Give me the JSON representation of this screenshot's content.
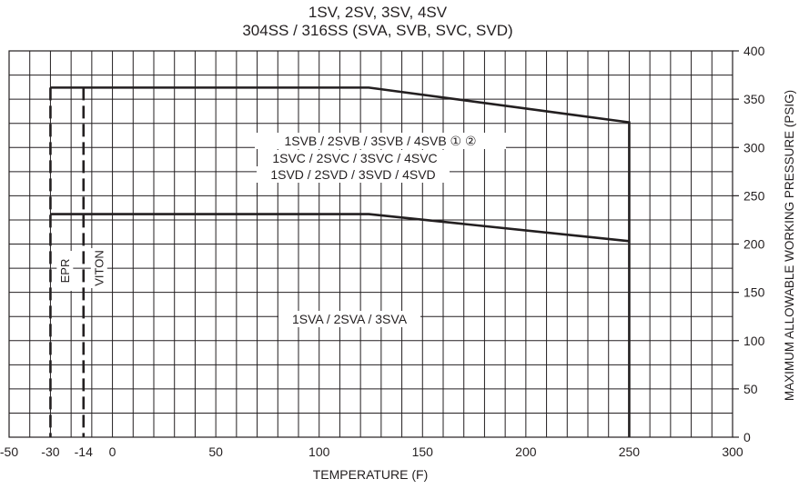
{
  "chart_data": {
    "type": "line",
    "title": "1SV, 2SV, 3SV, 4SV",
    "subtitle": "304SS / 316SS (SVA, SVB, SVC, SVD)",
    "xlabel": "TEMPERATURE (F)",
    "ylabel": "MAXIMUM ALLOWABLE WORKING PRESSURE (PSIG)",
    "xlim": [
      -50,
      300
    ],
    "ylim": [
      0,
      400
    ],
    "x_ticks": [
      -50,
      -30,
      -14,
      0,
      50,
      100,
      150,
      200,
      250,
      300
    ],
    "x_tick_labels": [
      "-50",
      "-30",
      "-14",
      "0",
      "50",
      "100",
      "150",
      "200",
      "250",
      "300"
    ],
    "y_ticks": [
      0,
      50,
      100,
      150,
      200,
      250,
      300,
      350,
      400
    ],
    "y_tick_labels": [
      "0",
      "50",
      "100",
      "150",
      "200",
      "250",
      "300",
      "350",
      "400"
    ],
    "y_axis_side": "right",
    "grid": true,
    "series": [
      {
        "name": "1SVB / 2SVB / 3SVB / 4SVB ① ②",
        "label_line2": "1SVC / 2SVC / 3SVC / 4SVC",
        "label_line3": "1SVD / 2SVD / 3SVD / 4SVD",
        "x": [
          -30,
          124,
          250,
          250
        ],
        "y": [
          362,
          362,
          326,
          0
        ]
      },
      {
        "name": "1SVA / 2SVA / 3SVA",
        "x": [
          -30,
          124,
          250
        ],
        "y": [
          231,
          231,
          203
        ]
      }
    ],
    "limits": [
      {
        "name": "EPR",
        "x": -30,
        "y_range": [
          0,
          362
        ],
        "style": "dashed"
      },
      {
        "name": "VITON",
        "x": -14,
        "y_range": [
          0,
          362
        ],
        "style": "dashed"
      }
    ]
  }
}
